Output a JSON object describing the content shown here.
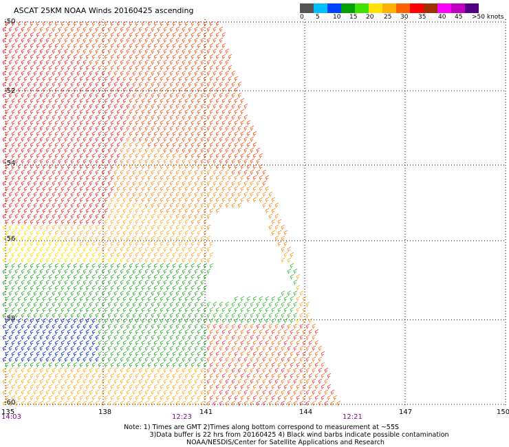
{
  "title": "ASCAT 25KM NOAA Winds 20160425 ascending",
  "legend": {
    "labels": [
      "0",
      "5",
      "10",
      "15",
      "20",
      "25",
      "30",
      "35",
      "40",
      "45",
      ">50 knots"
    ],
    "colors": [
      "#555555",
      "#00bfff",
      "#0040ff",
      "#00a000",
      "#40e000",
      "#ffe000",
      "#ffb000",
      "#ff6000",
      "#ff0000",
      "#a03000",
      "#ff00ff",
      "#c000c0",
      "#500080"
    ]
  },
  "axes": {
    "lon_labels": [
      "135",
      "138",
      "141",
      "144",
      "147",
      "150"
    ],
    "lat_labels": [
      "-50",
      "-52",
      "-54",
      "-56",
      "-58",
      "-60"
    ],
    "time_labels": [
      "14:03",
      "12:23",
      "12:21"
    ],
    "grid": "dotted"
  },
  "notes": {
    "line1": "Note: 1) Times are GMT 2)Times along bottom correspond to measurement at ~55S",
    "line2": "3)Data buffer is 22 hrs from 20160425 4) Black wind barbs indicate possible contamination",
    "line3": "NOAA/NESDIS/Center for Satellite Applications and Research"
  }
}
